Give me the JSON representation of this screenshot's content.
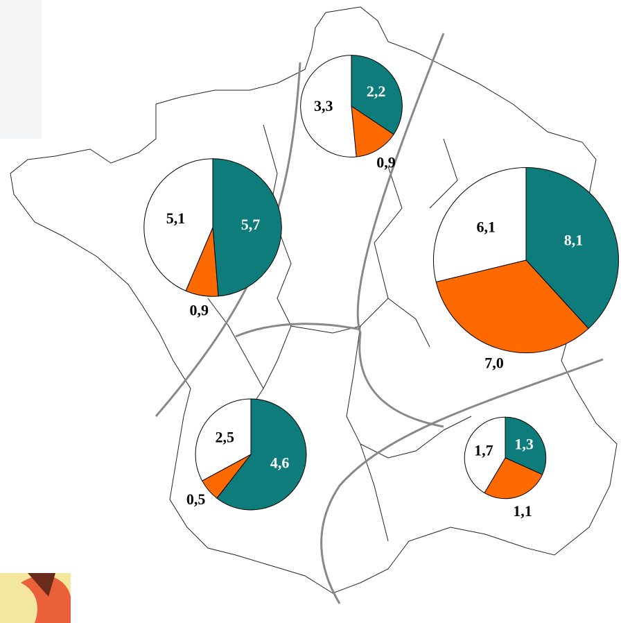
{
  "chart_data": [
    {
      "type": "pie",
      "values": [
        2.2,
        0.9,
        3.3
      ],
      "value_labels": [
        "2,2",
        "0,9",
        "3,3"
      ],
      "colors": [
        "#0e7c7b",
        "#ff6a00",
        "#ffffff"
      ]
    },
    {
      "type": "pie",
      "values": [
        5.7,
        0.9,
        5.1
      ],
      "value_labels": [
        "5,7",
        "0,9",
        "5,1"
      ],
      "colors": [
        "#0e7c7b",
        "#ff6a00",
        "#ffffff"
      ]
    },
    {
      "type": "pie",
      "values": [
        8.1,
        7.0,
        6.1
      ],
      "value_labels": [
        "8,1",
        "7,0",
        "6,1"
      ],
      "colors": [
        "#0e7c7b",
        "#ff6a00",
        "#ffffff"
      ]
    },
    {
      "type": "pie",
      "values": [
        4.6,
        0.5,
        2.5
      ],
      "value_labels": [
        "4,6",
        "0,5",
        "2,5"
      ],
      "colors": [
        "#0e7c7b",
        "#ff6a00",
        "#ffffff"
      ]
    },
    {
      "type": "pie",
      "values": [
        1.3,
        1.1,
        1.7
      ],
      "value_labels": [
        "1,3",
        "1,1",
        "1,7"
      ],
      "colors": [
        "#0e7c7b",
        "#ff6a00",
        "#ffffff"
      ]
    }
  ]
}
